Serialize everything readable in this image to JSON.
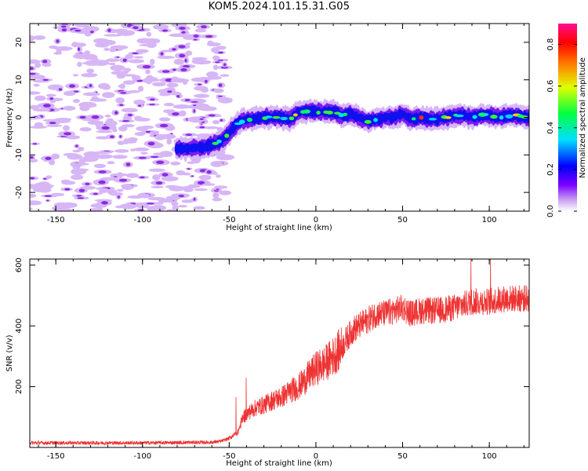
{
  "page": {
    "title": "KOM5.2024.101.15.31.G05"
  },
  "chart_data": [
    {
      "type": "heatmap",
      "xlabel": "Height of straight line (km)",
      "ylabel": "Frequency (Hz)",
      "xlim": [
        -165,
        123
      ],
      "ylim": [
        -25,
        25
      ],
      "xticks": [
        "-150",
        "-100",
        "-50",
        "0",
        "50",
        "100"
      ],
      "yticks": [
        "-20",
        "-10",
        "0",
        "10",
        "20"
      ],
      "ridge": {
        "x": [
          -80,
          -65,
          -55,
          -50,
          -45,
          -40,
          -35,
          -30,
          -25,
          -20,
          -15,
          -10,
          -5,
          0,
          5,
          10,
          15,
          20,
          25,
          30,
          35,
          40,
          45,
          50,
          55,
          60,
          65,
          70,
          75,
          80,
          85,
          90,
          95,
          100,
          105,
          110,
          115,
          120
        ],
        "y": [
          -8.5,
          -8,
          -6.5,
          -4,
          -1.5,
          -0.5,
          -0.5,
          0,
          0,
          0,
          -0.5,
          1.5,
          1.5,
          1.5,
          1.5,
          1.5,
          0.5,
          1,
          0,
          -1,
          -0.5,
          0,
          0,
          1,
          -0.5,
          0,
          -0.5,
          -0.5,
          0,
          0.5,
          0.5,
          0,
          0.5,
          0.5,
          0,
          0.5,
          0.5,
          0
        ]
      },
      "colorbar": {
        "label": "Normalized spectral amplitude",
        "ticks": [
          "0.0",
          "0.2",
          "0.4",
          "0.6",
          "0.8"
        ],
        "range": [
          0,
          0.9
        ]
      }
    },
    {
      "type": "line",
      "xlabel": "Height of straight line (km)",
      "ylabel": "SNR (v/v)",
      "xlim": [
        -165,
        123
      ],
      "ylim": [
        0,
        620
      ],
      "xticks": [
        "-150",
        "-100",
        "-50",
        "0",
        "50",
        "100"
      ],
      "yticks": [
        "200",
        "400",
        "600"
      ],
      "color": "#ee3333",
      "series": [
        {
          "x": [
            -165,
            -140,
            -120,
            -100,
            -80,
            -60,
            -55,
            -50,
            -45,
            -42,
            -40,
            -35,
            -30,
            -25,
            -20,
            -15,
            -10,
            -5,
            0,
            5,
            10,
            15,
            18,
            22,
            25,
            30,
            35,
            40,
            45,
            50,
            55,
            60,
            70,
            80,
            90,
            100,
            110,
            123
          ],
          "y": [
            15,
            15,
            15,
            15,
            16,
            17,
            20,
            30,
            50,
            100,
            110,
            130,
            140,
            155,
            165,
            185,
            200,
            230,
            260,
            275,
            300,
            330,
            360,
            390,
            400,
            420,
            440,
            440,
            450,
            460,
            440,
            450,
            450,
            460,
            480,
            480,
            490,
            490
          ]
        }
      ]
    }
  ]
}
